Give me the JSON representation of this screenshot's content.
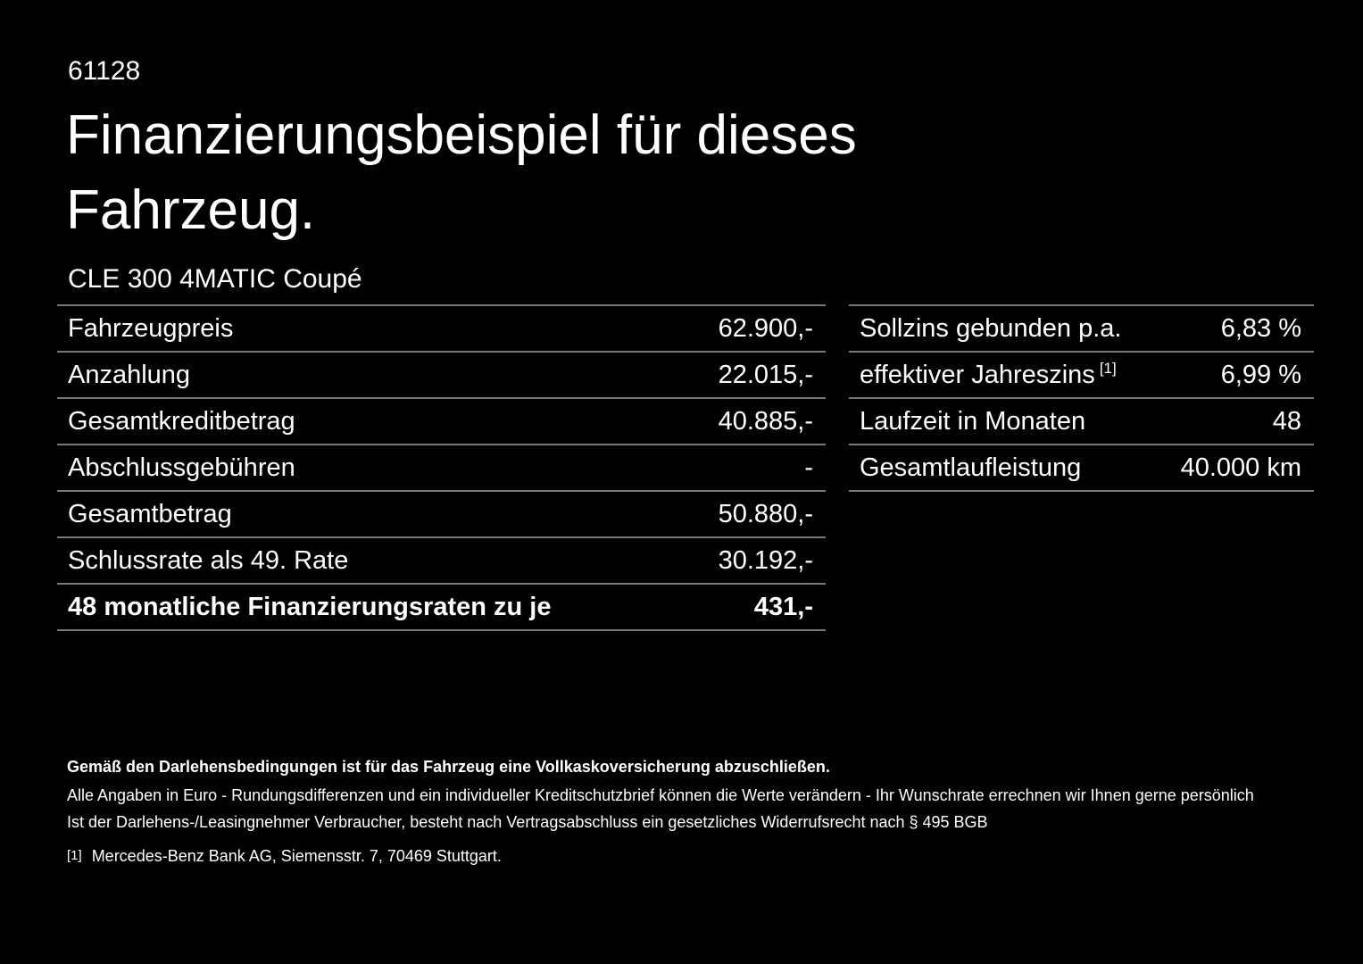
{
  "page": {
    "doc_number": "61128",
    "title_line1": "Finanzierungsbeispiel für dieses",
    "title_line2": "Fahrzeug.",
    "vehicle_model": "CLE 300 4MATIC Coupé"
  },
  "colors": {
    "background": "#000000",
    "text": "#ffffff",
    "divider": "#787878"
  },
  "left_table": {
    "rows": [
      {
        "label": "Fahrzeugpreis",
        "value": "62.900,-"
      },
      {
        "label": "Anzahlung",
        "value": "22.015,-"
      },
      {
        "label": "Gesamtkreditbetrag",
        "value": "40.885,-"
      },
      {
        "label": "Abschlussgebühren",
        "value": "-"
      },
      {
        "label": "Gesamtbetrag",
        "value": "50.880,-"
      },
      {
        "label": "Schlussrate als 49. Rate",
        "value": "30.192,-"
      },
      {
        "label": "48 monatliche Finanzierungsraten zu je",
        "value": "431,-"
      }
    ]
  },
  "right_table": {
    "rows": [
      {
        "label": "Sollzins gebunden p.a.",
        "value": "6,83 %"
      },
      {
        "label": "effektiver Jahreszins",
        "sup": "[1]",
        "value": "6,99 %"
      },
      {
        "label": "Laufzeit in Monaten",
        "value": "48"
      },
      {
        "label": "Gesamtlaufleistung",
        "value": "40.000 km"
      }
    ]
  },
  "footer": {
    "line1": "Gemäß den Darlehensbedingungen ist für das Fahrzeug eine Vollkaskoversicherung abzuschließen.",
    "line2": "Alle Angaben in Euro - Rundungsdifferenzen und ein individueller Kreditschutzbrief können die Werte verändern - Ihr Wunschrate errechnen wir Ihnen gerne persönlich",
    "line3": "Ist der Darlehens-/Leasingnehmer Verbraucher, besteht nach Vertragsabschluss ein gesetzliches Widerrufsrecht nach § 495 BGB",
    "footnote_marker": "[1]",
    "footnote_text": "Mercedes-Benz Bank AG, Siemensstr. 7, 70469 Stuttgart."
  }
}
